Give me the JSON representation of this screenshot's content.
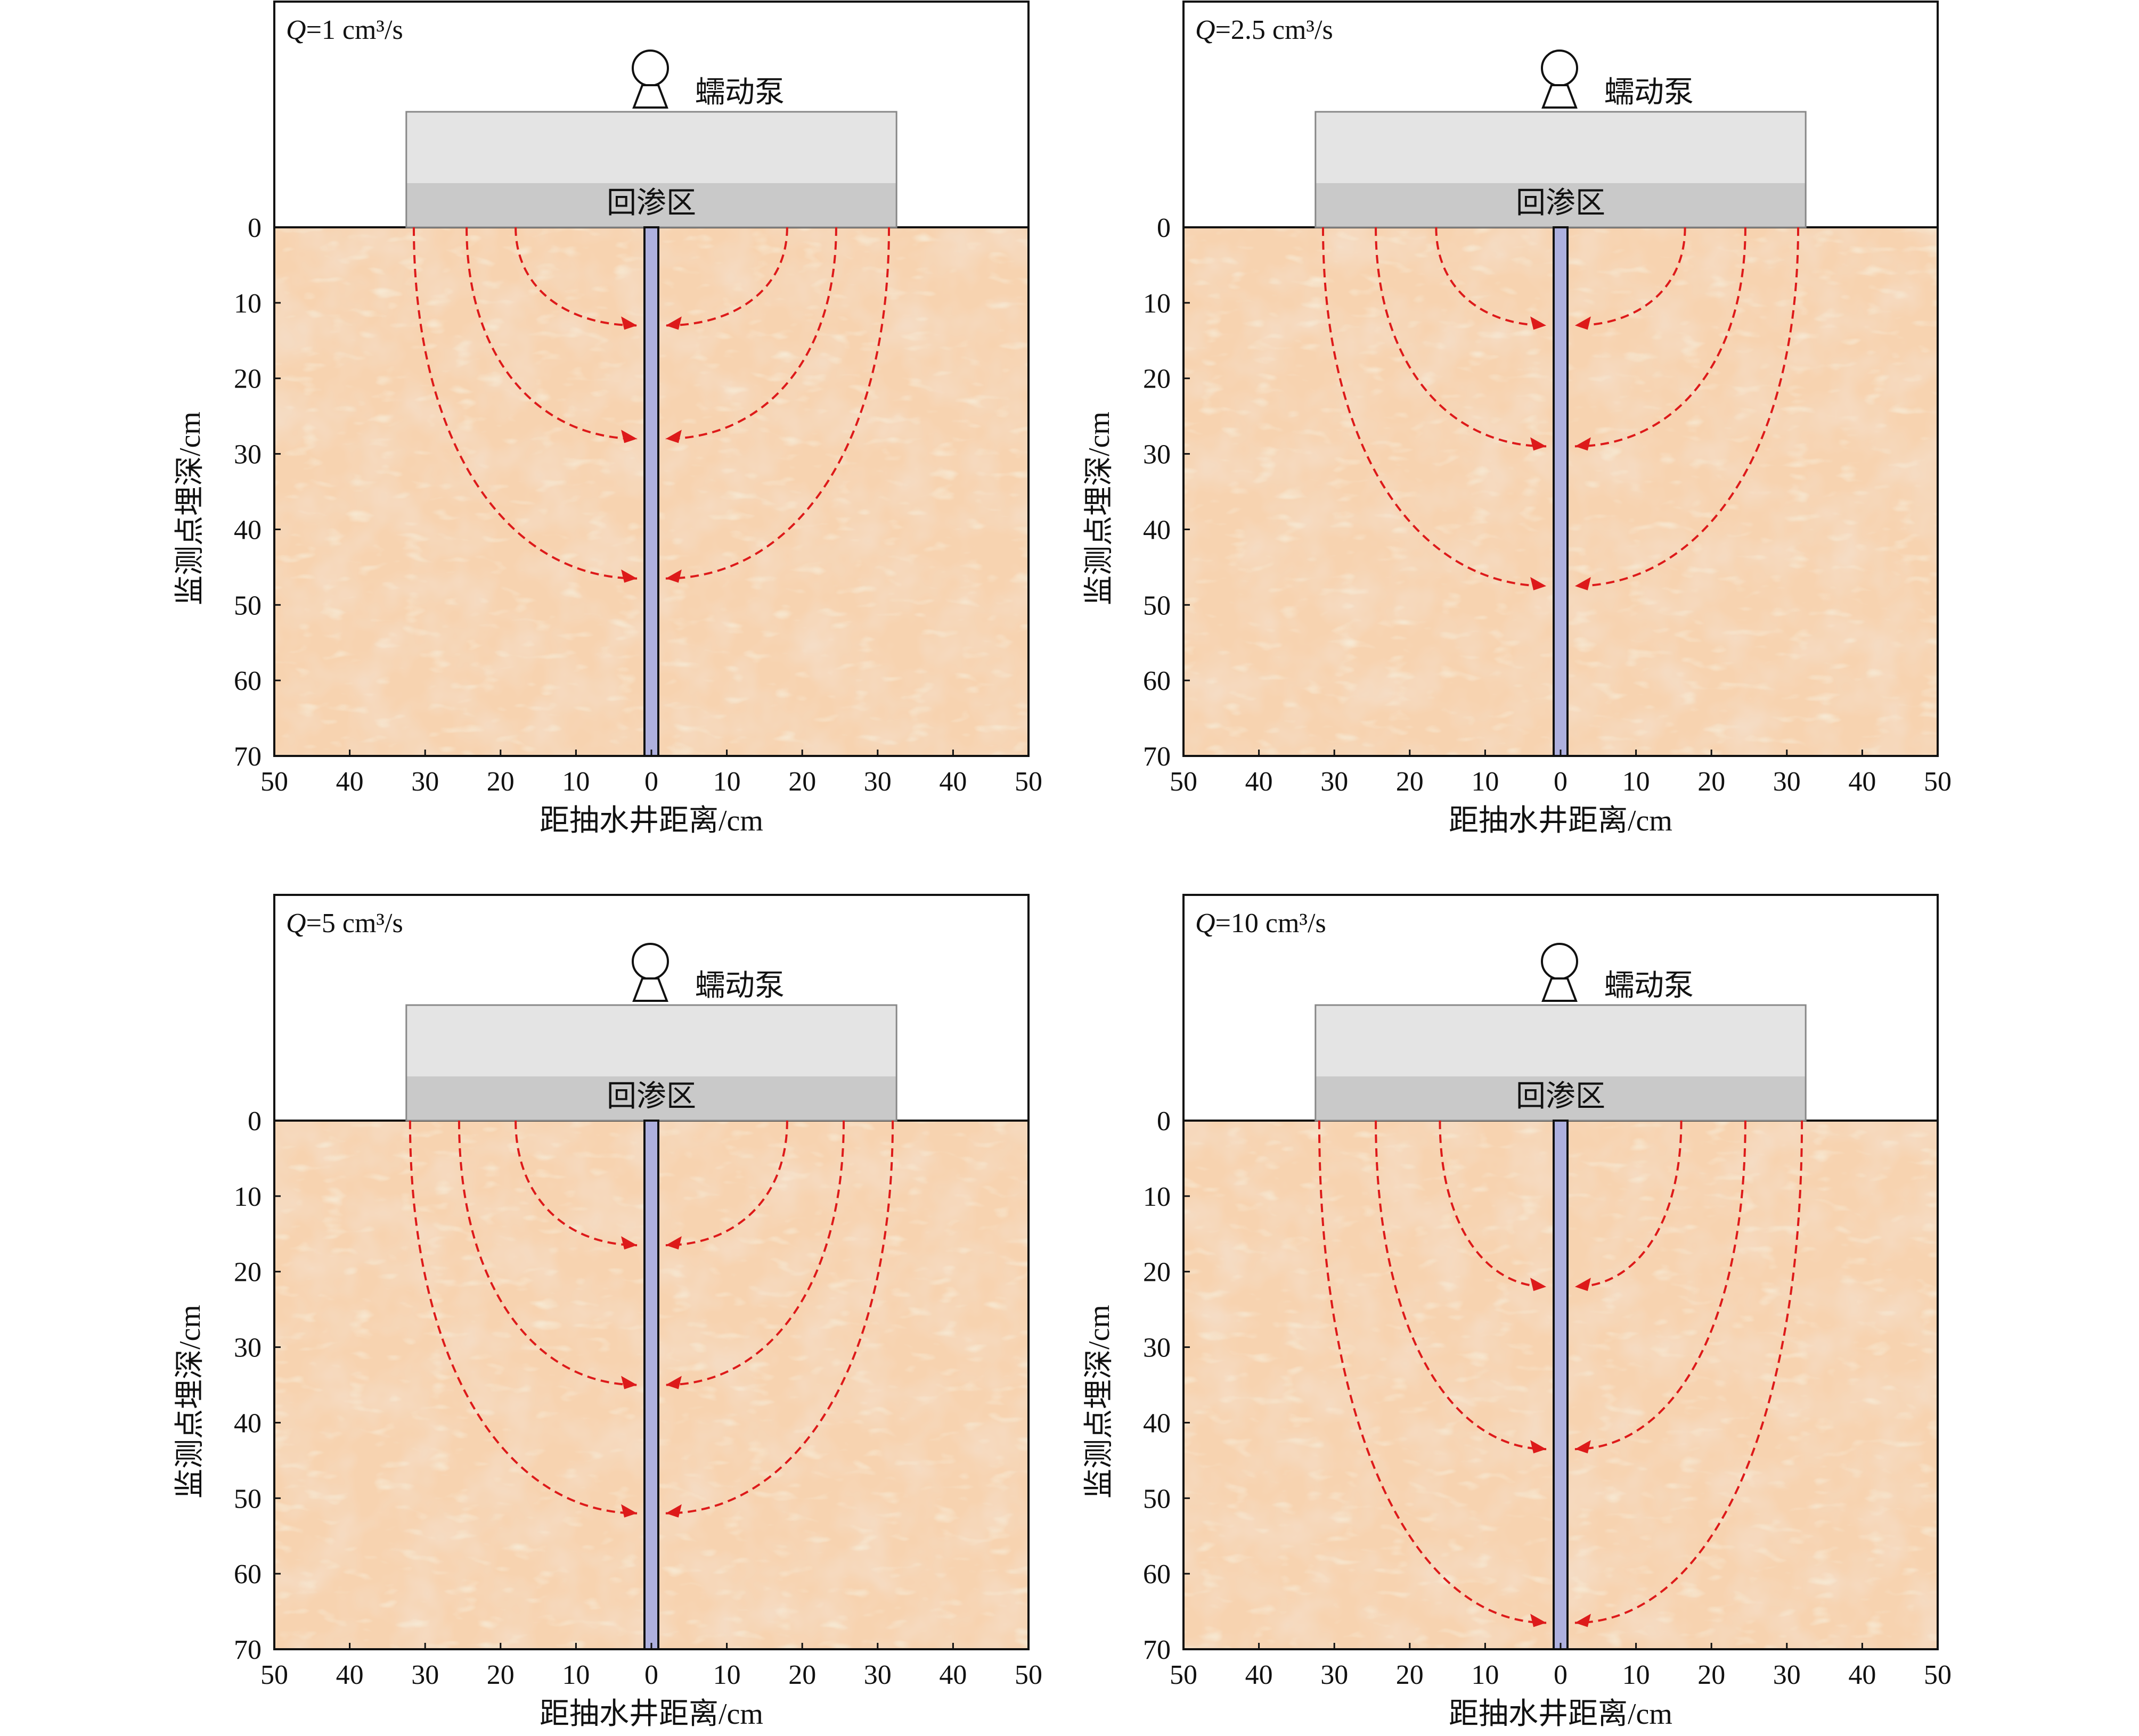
{
  "colors": {
    "soil": "#f7d3b0",
    "soil_dark": "#e9bd97",
    "soil_light": "#eedfbf",
    "well_fill": "#aeb0de",
    "flow_line": "#dd1a1a",
    "recharge_top": "#e4e4e4",
    "recharge_bottom": "#c9c9c9"
  },
  "icons": {
    "pump": "peristaltic-pump-icon",
    "arrow": "red-arrowhead-icon"
  },
  "shared": {
    "pump_label": "蠕动泵",
    "recharge_label": "回渗区",
    "x_axis_title": "距抽水井距离/cm",
    "y_axis_title": "监测点埋深/cm",
    "x_ticks": [
      "50",
      "40",
      "30",
      "20",
      "10",
      "0",
      "10",
      "20",
      "30",
      "40",
      "50"
    ],
    "y_ticks": [
      "0",
      "10",
      "20",
      "30",
      "40",
      "50",
      "60",
      "70"
    ]
  },
  "panels": [
    {
      "id": "p1",
      "q_symbol": "Q",
      "q_text": "=1 cm³/s",
      "recharge_half_width_cm": 32.5
    },
    {
      "id": "p2",
      "q_symbol": "Q",
      "q_text": "=2.5 cm³/s",
      "recharge_half_width_cm": 32.5
    },
    {
      "id": "p3",
      "q_symbol": "Q",
      "q_text": "=5 cm³/s",
      "recharge_half_width_cm": 32.5
    },
    {
      "id": "p4",
      "q_symbol": "Q",
      "q_text": "=10 cm³/s",
      "recharge_half_width_cm": 32.5
    }
  ],
  "chart_data": [
    {
      "type": "diagram",
      "title": "Q=1 cm³/s",
      "xlabel": "距抽水井距离/cm",
      "ylabel": "监测点埋深/cm",
      "xlim": [
        -50,
        50
      ],
      "ylim": [
        0,
        70
      ],
      "flow_lines": [
        {
          "start_x_cm": 18,
          "end_depth_cm": 13
        },
        {
          "start_x_cm": 24.5,
          "end_depth_cm": 28
        },
        {
          "start_x_cm": 31.5,
          "end_depth_cm": 46.5
        }
      ]
    },
    {
      "type": "diagram",
      "title": "Q=2.5 cm³/s",
      "xlabel": "距抽水井距离/cm",
      "ylabel": "监测点埋深/cm",
      "xlim": [
        -50,
        50
      ],
      "ylim": [
        0,
        70
      ],
      "flow_lines": [
        {
          "start_x_cm": 16.5,
          "end_depth_cm": 13
        },
        {
          "start_x_cm": 24.5,
          "end_depth_cm": 29
        },
        {
          "start_x_cm": 31.5,
          "end_depth_cm": 47.5
        }
      ]
    },
    {
      "type": "diagram",
      "title": "Q=5 cm³/s",
      "xlabel": "距抽水井距离/cm",
      "ylabel": "监测点埋深/cm",
      "xlim": [
        -50,
        50
      ],
      "ylim": [
        0,
        70
      ],
      "flow_lines": [
        {
          "start_x_cm": 18,
          "end_depth_cm": 16.5
        },
        {
          "start_x_cm": 25.5,
          "end_depth_cm": 35
        },
        {
          "start_x_cm": 32,
          "end_depth_cm": 52
        }
      ]
    },
    {
      "type": "diagram",
      "title": "Q=10 cm³/s",
      "xlabel": "距抽水井距离/cm",
      "ylabel": "监测点埋深/cm",
      "xlim": [
        -50,
        50
      ],
      "ylim": [
        0,
        70
      ],
      "flow_lines": [
        {
          "start_x_cm": 16,
          "end_depth_cm": 22
        },
        {
          "start_x_cm": 24.5,
          "end_depth_cm": 43.5
        },
        {
          "start_x_cm": 32,
          "end_depth_cm": 66.5
        }
      ]
    }
  ]
}
